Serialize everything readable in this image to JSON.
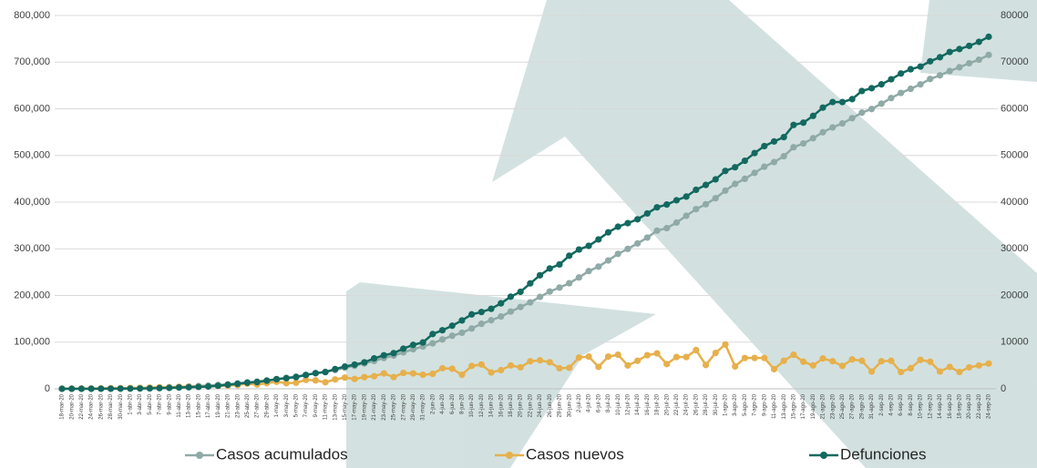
{
  "chart_data": {
    "type": "line",
    "categories": [
      "18-mar-20",
      "20-mar-20",
      "22-mar-20",
      "24-mar-20",
      "26-mar-20",
      "28-mar-20",
      "30-mar-20",
      "1-abr-20",
      "3-abr-20",
      "5-abr-20",
      "7-abr-20",
      "9-abr-20",
      "11-abr-20",
      "13-abr-20",
      "15-abr-20",
      "17-abr-20",
      "19-abr-20",
      "21-abr-20",
      "23-abr-20",
      "25-abr-20",
      "27-abr-20",
      "29-abr-20",
      "1-may-20",
      "3-may-20",
      "5-may-20",
      "7-may-20",
      "9-may-20",
      "11-may-20",
      "13-may-20",
      "15-may-20",
      "17-may-20",
      "19-may-20",
      "21-may-20",
      "23-may-20",
      "25-may-20",
      "27-may-20",
      "29-may-20",
      "31-may-20",
      "2-jun-20",
      "4-jun-20",
      "6-jun-20",
      "8-jun-20",
      "10-jun-20",
      "12-jun-20",
      "14-jun-20",
      "16-jun-20",
      "18-jun-20",
      "20-jun-20",
      "22-jun-20",
      "24-jun-20",
      "26-jun-20",
      "28-jun-20",
      "30-jun-20",
      "2-jul-20",
      "4-jul-20",
      "6-jul-20",
      "8-jul-20",
      "10-jul-20",
      "12-jul-20",
      "14-jul-20",
      "16-jul-20",
      "18-jul-20",
      "20-jul-20",
      "22-jul-20",
      "24-jul-20",
      "26-jul-20",
      "28-jul-20",
      "30-jul-20",
      "1-ago-20",
      "3-ago-20",
      "5-ago-20",
      "7-ago-20",
      "9-ago-20",
      "11-ago-20",
      "13-ago-20",
      "15-ago-20",
      "17-ago-20",
      "19-ago-20",
      "21-ago-20",
      "23-ago-20",
      "25-ago-20",
      "27-ago-20",
      "29-ago-20",
      "31-ago-20",
      "2-sep-20",
      "4-sep-20",
      "6-sep-20",
      "8-sep-20",
      "10-sep-20",
      "12-sep-20",
      "14-sep-20",
      "16-sep-20",
      "18-sep-20",
      "20-sep-20",
      "22-sep-20",
      "24-sep-20"
    ],
    "series": [
      {
        "name": "Casos acumulados",
        "color": "#8faaa7",
        "axis": "y",
        "values": [
          118,
          203,
          316,
          405,
          585,
          848,
          1094,
          1378,
          1688,
          2143,
          2785,
          3441,
          4219,
          5014,
          5847,
          6875,
          8261,
          9501,
          11633,
          13842,
          15529,
          17799,
          20739,
          23471,
          26025,
          29616,
          33460,
          36327,
          40186,
          45032,
          49219,
          54346,
          59567,
          65856,
          71105,
          78023,
          84627,
          90664,
          97326,
          105680,
          113619,
          120102,
          129184,
          139196,
          146837,
          154863,
          165455,
          175202,
          185122,
          196847,
          208392,
          216852,
          226089,
          238511,
          252165,
          261750,
          275003,
          289174,
          299750,
          311486,
          324041,
          338913,
          344224,
          356255,
          370712,
          385036,
          395489,
          408449,
          424637,
          439046,
          449961,
          462690,
          475902,
          485836,
          498380,
          517714,
          525733,
          537031,
          549734,
          560164,
          568621,
          579914,
          591712,
          599560,
          610957,
          623090,
          634023,
          642860,
          652364,
          663973,
          671716,
          680931,
          688954,
          697663,
          705263,
          715457
        ]
      },
      {
        "name": "Casos nuevos",
        "color": "#e6b04c",
        "axis": "y2",
        "values": [
          25,
          40,
          60,
          50,
          90,
          130,
          120,
          160,
          180,
          250,
          330,
          300,
          400,
          430,
          450,
          500,
          600,
          700,
          800,
          1100,
          900,
          1200,
          1500,
          1200,
          1300,
          1900,
          1800,
          1400,
          2000,
          2400,
          2100,
          2500,
          2700,
          3300,
          2500,
          3400,
          3300,
          3000,
          3200,
          4400,
          4300,
          3000,
          4900,
          5200,
          3500,
          4000,
          5000,
          4600,
          5900,
          6100,
          5700,
          4400,
          4500,
          6700,
          6900,
          4700,
          6900,
          7300,
          5000,
          6000,
          7200,
          7600,
          5300,
          6800,
          6800,
          8300,
          5100,
          7700,
          9500,
          4800,
          6600,
          6600,
          6600,
          4200,
          6000,
          7300,
          5800,
          5000,
          6500,
          5900,
          4900,
          6300,
          6000,
          3700,
          5900,
          6000,
          3600,
          4400,
          6200,
          5800,
          3700,
          4700,
          3600,
          4600,
          5000,
          5400
        ]
      },
      {
        "name": "Defunciones",
        "color": "#13695f",
        "axis": "y2",
        "values": [
          0,
          0,
          2,
          5,
          8,
          16,
          28,
          37,
          60,
          94,
          141,
          194,
          273,
          332,
          406,
          486,
          650,
          857,
          1069,
          1305,
          1434,
          1732,
          2061,
          2271,
          2507,
          2961,
          3353,
          3573,
          4220,
          4767,
          5177,
          5666,
          6510,
          7179,
          7633,
          8597,
          9415,
          9930,
          11729,
          12545,
          13511,
          14649,
          15944,
          16448,
          17141,
          18310,
          19747,
          20781,
          22584,
          24324,
          25779,
          26648,
          28510,
          29843,
          30639,
          32014,
          33526,
          34730,
          35491,
          36327,
          37574,
          38888,
          39485,
          40400,
          41190,
          42645,
          43680,
          44876,
          46688,
          47472,
          48869,
          50517,
          52006,
          53003,
          53929,
          56543,
          57023,
          58481,
          60254,
          61450,
          61450,
          62076,
          63819,
          64414,
          65241,
          66329,
          67558,
          68484,
          69049,
          70183,
          71049,
          72179,
          72803,
          73493,
          74348,
          75439
        ]
      }
    ],
    "ylim": [
      0,
      800000
    ],
    "yticks": [
      0,
      {
        "value": 100000,
        "label": "100,000"
      },
      {
        "value": 200000,
        "label": "200,000"
      },
      {
        "value": 300000,
        "label": "300,000"
      },
      {
        "value": 400000,
        "label": "400,000"
      },
      {
        "value": 500000,
        "label": "500,000"
      },
      {
        "value": 600000,
        "label": "600,000"
      },
      {
        "value": 700000,
        "label": "700,000"
      },
      {
        "value": 800000,
        "label": "800,000"
      }
    ],
    "y2lim": [
      0,
      80000
    ],
    "y2ticks": [
      0,
      10000,
      20000,
      30000,
      40000,
      50000,
      60000,
      70000,
      80000
    ],
    "grid": true,
    "legend": "bottom"
  }
}
